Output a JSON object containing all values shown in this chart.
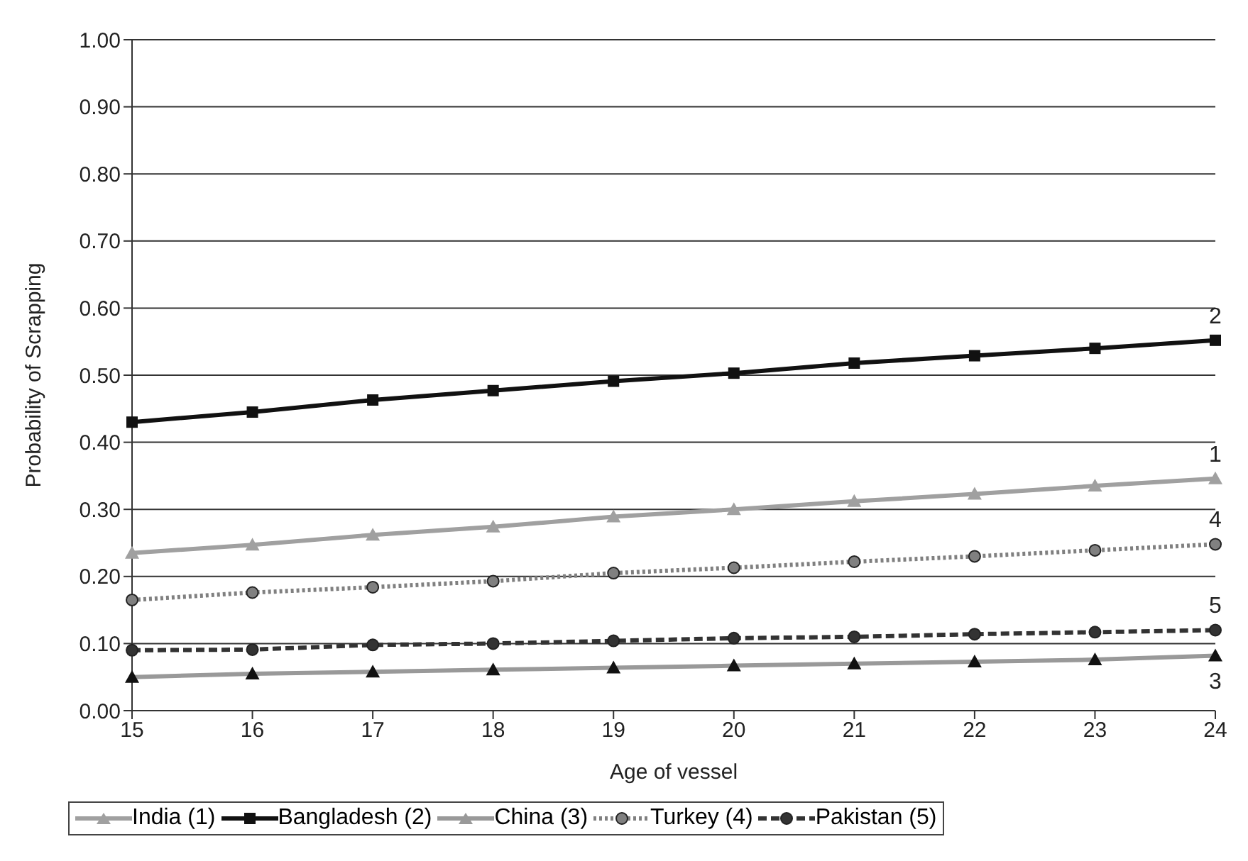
{
  "chart_data": {
    "type": "line",
    "xlabel": "Age of vessel",
    "ylabel": "Probability of Scrapping",
    "categories": [
      "15",
      "16",
      "17",
      "18",
      "19",
      "20",
      "21",
      "22",
      "23",
      "24"
    ],
    "series": [
      {
        "name": "India (1)",
        "color": "#a0a0a0",
        "marker": "triangle",
        "values": [
          0.235,
          0.247,
          0.262,
          0.274,
          0.289,
          0.3,
          0.312,
          0.323,
          0.335,
          0.346
        ]
      },
      {
        "name": "Bangladesh (2)",
        "color": "#111111",
        "marker": "square",
        "values": [
          0.43,
          0.445,
          0.463,
          0.477,
          0.491,
          0.503,
          0.518,
          0.529,
          0.54,
          0.552
        ]
      },
      {
        "name": "China (3)",
        "color": "#999999",
        "marker": "triangle",
        "values": [
          0.05,
          0.055,
          0.058,
          0.061,
          0.064,
          0.067,
          0.07,
          0.073,
          0.076,
          0.082
        ]
      },
      {
        "name": "Turkey (4)",
        "color": "#808080",
        "marker": "circle",
        "line_style": "dotted",
        "values": [
          0.165,
          0.176,
          0.184,
          0.193,
          0.205,
          0.213,
          0.222,
          0.23,
          0.239,
          0.248
        ]
      },
      {
        "name": "Pakistan (5)",
        "color": "#333333",
        "marker": "circle",
        "line_style": "dashed",
        "values": [
          0.09,
          0.091,
          0.098,
          0.1,
          0.104,
          0.108,
          0.11,
          0.114,
          0.117,
          0.12
        ]
      }
    ],
    "ylim": [
      0,
      1
    ],
    "yticks": [
      {
        "value": 0,
        "label": "0.00"
      },
      {
        "value": 0.1,
        "label": "0.10"
      },
      {
        "value": 0.2,
        "label": "0.20"
      },
      {
        "value": 0.3,
        "label": "0.30"
      },
      {
        "value": 0.4,
        "label": "0.40"
      },
      {
        "value": 0.5,
        "label": "0.50"
      },
      {
        "value": 0.6,
        "label": "0.60"
      },
      {
        "value": 0.7,
        "label": "0.70"
      },
      {
        "value": 0.8,
        "label": "0.80"
      },
      {
        "value": 0.9,
        "label": "0.90"
      },
      {
        "value": 1,
        "label": "1.00"
      }
    ],
    "grid": "y",
    "legend": "bottom",
    "annotations": [
      {
        "text": "1",
        "x": "24",
        "y": 0.346
      },
      {
        "text": "2",
        "x": "24",
        "y": 0.552
      },
      {
        "text": "3",
        "x": "24",
        "y": 0.082
      },
      {
        "text": "4",
        "x": "24",
        "y": 0.248
      },
      {
        "text": "5",
        "x": "24",
        "y": 0.12
      }
    ]
  }
}
